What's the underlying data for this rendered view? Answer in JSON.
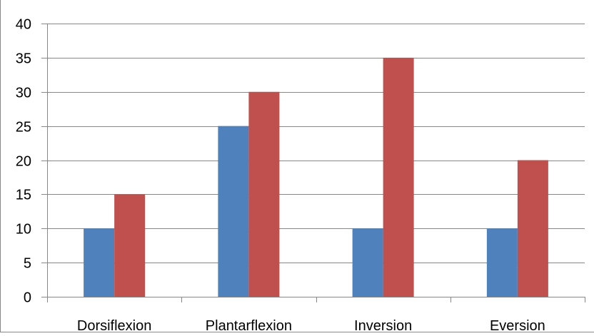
{
  "chart_data": {
    "type": "bar",
    "title": "",
    "xlabel": "",
    "ylabel": "",
    "categories": [
      "Dorsiflexion",
      "Plantarflexion",
      "Inversion",
      "Eversion"
    ],
    "series": [
      {
        "values": [
          10,
          25,
          10,
          10
        ],
        "color": "#4F81BD"
      },
      {
        "values": [
          15,
          30,
          35,
          20
        ],
        "color": "#C0504D"
      }
    ],
    "ylim": [
      0,
      40
    ],
    "yticks": [
      0,
      5,
      10,
      15,
      20,
      25,
      30,
      35,
      40
    ],
    "grid": true,
    "legend": "none"
  },
  "colors": {
    "grid": "#878787",
    "axis": "#878787",
    "border": "#878787"
  }
}
